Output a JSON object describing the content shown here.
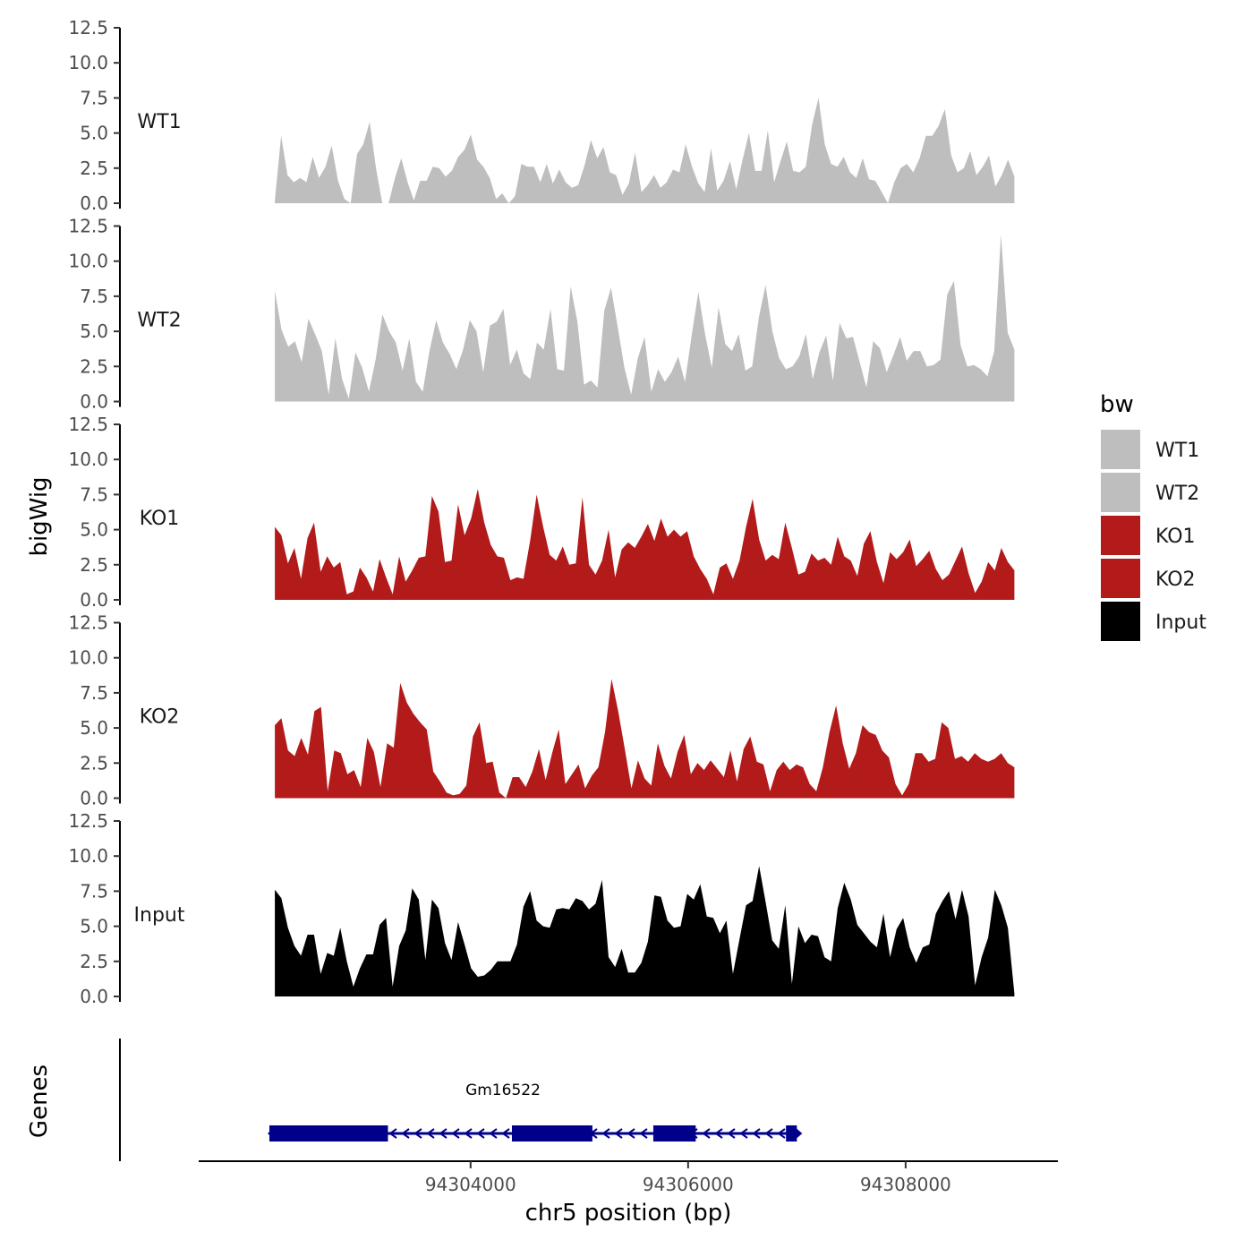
{
  "chart_data": {
    "type": "area",
    "ylabel": "bigWig",
    "xlabel": "chr5 position (bp)",
    "genes_label": "Genes",
    "legend_title": "bw",
    "legend_position": "right",
    "x_range": [
      94301500,
      94309400
    ],
    "x_ticks": [
      {
        "value": 94304000,
        "label": "94304000"
      },
      {
        "value": 94306000,
        "label": "94306000"
      },
      {
        "value": 94308000,
        "label": "94308000"
      }
    ],
    "y_range": [
      0,
      12.5
    ],
    "y_ticks": [
      {
        "value": 0,
        "label": "0.0"
      },
      {
        "value": 2.5,
        "label": "2.5"
      },
      {
        "value": 5,
        "label": "5.0"
      },
      {
        "value": 7.5,
        "label": "7.5"
      },
      {
        "value": 10,
        "label": "10.0"
      },
      {
        "value": 12.5,
        "label": "12.5"
      }
    ],
    "signal_x_start": 94302200,
    "signal_x_end": 94309000,
    "series": [
      {
        "name": "WT1",
        "label": "WT1",
        "color": "#bebebe",
        "values": [
          0.2,
          4.8,
          2.0,
          1.5,
          1.8,
          1.5,
          3.3,
          1.8,
          2.6,
          4.1,
          1.6,
          0.3,
          0.0,
          3.5,
          4.2,
          5.8,
          2.5,
          0.0,
          0.0,
          1.8,
          3.2,
          1.5,
          0.2,
          1.6,
          1.6,
          2.6,
          2.5,
          1.9,
          2.3,
          3.3,
          3.8,
          4.9,
          3.1,
          2.6,
          1.8,
          0.3,
          0.7,
          0.0,
          0.5,
          2.8,
          2.6,
          2.6,
          1.5,
          2.8,
          1.4,
          2.4,
          1.5,
          1.1,
          1.3,
          2.7,
          4.5,
          3.2,
          4.0,
          2.2,
          2.0,
          0.6,
          1.4,
          3.6,
          0.8,
          1.3,
          2.0,
          1.1,
          1.5,
          2.4,
          2.2,
          4.2,
          2.6,
          1.4,
          0.8,
          3.9,
          0.9,
          1.6,
          3.0,
          1.0,
          3.1,
          5.0,
          2.3,
          2.3,
          5.2,
          1.5,
          3.0,
          4.4,
          2.3,
          2.2,
          2.6,
          5.6,
          7.5,
          4.2,
          2.8,
          2.6,
          3.3,
          2.2,
          1.8,
          3.2,
          1.7,
          1.6,
          0.8,
          0.0,
          1.5,
          2.5,
          2.8,
          2.2,
          3.2,
          4.8,
          4.8,
          5.5,
          6.7,
          3.4,
          2.2,
          2.5,
          3.7,
          2.0,
          2.6,
          3.4,
          1.2,
          2.0,
          3.1,
          1.9
        ]
      },
      {
        "name": "WT2",
        "label": "WT2",
        "color": "#bebebe",
        "values": [
          7.9,
          5.1,
          3.9,
          4.3,
          2.8,
          5.9,
          4.8,
          3.6,
          0.5,
          4.5,
          1.6,
          0.2,
          3.5,
          2.4,
          0.7,
          3.0,
          6.2,
          5.0,
          4.2,
          2.2,
          4.5,
          1.4,
          0.7,
          3.6,
          5.8,
          4.2,
          3.4,
          2.3,
          3.7,
          5.8,
          5.0,
          2.1,
          5.4,
          5.7,
          6.6,
          2.6,
          3.7,
          2.0,
          1.6,
          4.2,
          3.7,
          6.6,
          2.3,
          2.2,
          8.2,
          5.7,
          1.2,
          1.5,
          1.0,
          6.5,
          8.1,
          5.3,
          2.4,
          0.5,
          3.1,
          4.6,
          0.7,
          2.3,
          1.4,
          2.1,
          3.2,
          1.4,
          4.7,
          7.8,
          4.8,
          2.4,
          6.7,
          4.1,
          3.6,
          4.8,
          2.2,
          2.5,
          6.0,
          8.3,
          5.0,
          3.1,
          2.3,
          2.5,
          3.2,
          4.8,
          1.6,
          3.5,
          4.7,
          1.5,
          5.6,
          4.5,
          4.6,
          2.8,
          1.0,
          4.3,
          3.8,
          2.1,
          3.3,
          4.6,
          2.9,
          3.6,
          3.6,
          2.5,
          2.6,
          3.0,
          7.6,
          8.6,
          4.0,
          2.5,
          2.6,
          2.3,
          1.8,
          3.6,
          11.9,
          4.9,
          3.7
        ]
      },
      {
        "name": "KO1",
        "label": "KO1",
        "color": "#b31b1b",
        "values": [
          5.2,
          4.6,
          2.6,
          3.7,
          1.5,
          4.4,
          5.5,
          2.0,
          3.1,
          2.3,
          2.7,
          0.4,
          0.6,
          2.3,
          1.6,
          0.6,
          2.9,
          1.6,
          0.4,
          3.1,
          1.3,
          2.1,
          3.0,
          3.1,
          7.4,
          6.3,
          2.7,
          2.8,
          6.8,
          4.6,
          5.8,
          7.9,
          5.5,
          3.9,
          3.1,
          3.0,
          1.4,
          1.6,
          1.5,
          4.2,
          7.5,
          5.2,
          3.2,
          2.8,
          3.8,
          2.5,
          2.6,
          7.3,
          2.5,
          1.8,
          2.8,
          5.0,
          1.6,
          3.6,
          4.1,
          3.7,
          4.5,
          5.4,
          4.2,
          5.8,
          4.5,
          5.0,
          4.5,
          4.9,
          3.1,
          2.2,
          1.5,
          0.4,
          2.3,
          2.6,
          1.5,
          2.8,
          5.2,
          7.2,
          4.3,
          2.8,
          3.2,
          2.9,
          5.5,
          3.7,
          1.8,
          2.0,
          3.3,
          2.8,
          3.0,
          2.5,
          4.5,
          3.1,
          2.8,
          1.7,
          4.0,
          4.9,
          2.7,
          1.2,
          3.4,
          2.9,
          3.4,
          4.3,
          2.4,
          2.9,
          3.5,
          2.2,
          1.4,
          1.8,
          2.8,
          3.8,
          1.9,
          0.5,
          1.3,
          2.7,
          2.1,
          3.7,
          2.7,
          2.1
        ]
      },
      {
        "name": "KO2",
        "label": "KO2",
        "color": "#b31b1b",
        "values": [
          5.2,
          5.7,
          3.4,
          3.0,
          4.3,
          3.1,
          6.2,
          6.5,
          0.5,
          3.4,
          3.2,
          1.7,
          2.0,
          0.8,
          4.3,
          3.3,
          0.8,
          3.9,
          3.6,
          8.2,
          6.8,
          6.0,
          5.4,
          4.9,
          1.9,
          1.2,
          0.4,
          0.2,
          0.3,
          0.9,
          4.4,
          5.4,
          2.5,
          2.6,
          0.4,
          0.0,
          1.5,
          1.5,
          0.8,
          1.9,
          3.5,
          1.3,
          3.2,
          4.9,
          1.0,
          1.7,
          2.4,
          0.7,
          1.6,
          2.2,
          4.7,
          8.5,
          6.2,
          3.5,
          0.7,
          2.7,
          1.4,
          0.9,
          3.9,
          2.3,
          1.4,
          3.3,
          4.5,
          1.7,
          2.5,
          2.0,
          2.7,
          2.1,
          1.5,
          3.4,
          1.2,
          3.5,
          4.4,
          2.6,
          2.4,
          0.5,
          2.0,
          2.6,
          2.0,
          2.4,
          2.2,
          1.0,
          0.5,
          2.2,
          4.7,
          6.6,
          3.9,
          2.1,
          3.2,
          5.2,
          4.7,
          4.5,
          3.4,
          2.9,
          1.0,
          0.2,
          1.0,
          3.2,
          3.2,
          2.6,
          2.8,
          5.4,
          5.0,
          2.8,
          3.0,
          2.6,
          3.2,
          2.8,
          2.6,
          2.8,
          3.2,
          2.5,
          2.2
        ]
      },
      {
        "name": "Input",
        "label": "Input",
        "color": "#000000",
        "values": [
          7.6,
          7.0,
          4.9,
          3.6,
          2.9,
          4.4,
          4.4,
          1.6,
          3.1,
          2.9,
          4.9,
          2.5,
          0.7,
          2.0,
          3.0,
          3.0,
          5.1,
          5.6,
          0.7,
          3.6,
          4.7,
          7.7,
          6.9,
          2.6,
          6.9,
          6.3,
          3.8,
          2.6,
          5.3,
          3.7,
          2.0,
          1.4,
          1.5,
          1.9,
          2.5,
          2.5,
          2.5,
          3.7,
          6.4,
          7.5,
          5.4,
          5.0,
          4.9,
          6.2,
          6.3,
          6.2,
          7.0,
          6.8,
          6.2,
          6.6,
          8.3,
          2.8,
          2.1,
          3.4,
          1.7,
          1.7,
          2.4,
          3.9,
          7.2,
          7.1,
          5.4,
          4.9,
          5.0,
          7.3,
          6.9,
          8.0,
          5.7,
          5.6,
          4.5,
          5.4,
          1.6,
          4.1,
          6.5,
          6.8,
          9.3,
          6.7,
          4.0,
          3.4,
          6.5,
          0.9,
          5.0,
          3.8,
          4.4,
          4.3,
          2.8,
          2.5,
          6.3,
          8.1,
          6.9,
          5.1,
          4.5,
          3.9,
          3.5,
          5.9,
          2.8,
          4.8,
          5.6,
          3.5,
          2.4,
          3.5,
          3.7,
          5.9,
          6.8,
          7.5,
          5.5,
          7.6,
          5.7,
          0.8,
          2.8,
          4.2,
          7.6,
          6.5,
          4.9,
          0.2
        ]
      }
    ],
    "gene": {
      "name": "Gm16522",
      "strand": "-",
      "start": 94302150,
      "end": 94307000,
      "exons": [
        {
          "start": 94302150,
          "end": 94303240
        },
        {
          "start": 94304380,
          "end": 94305120
        },
        {
          "start": 94305680,
          "end": 94306070
        },
        {
          "start": 94306900,
          "end": 94307000
        }
      ]
    }
  }
}
